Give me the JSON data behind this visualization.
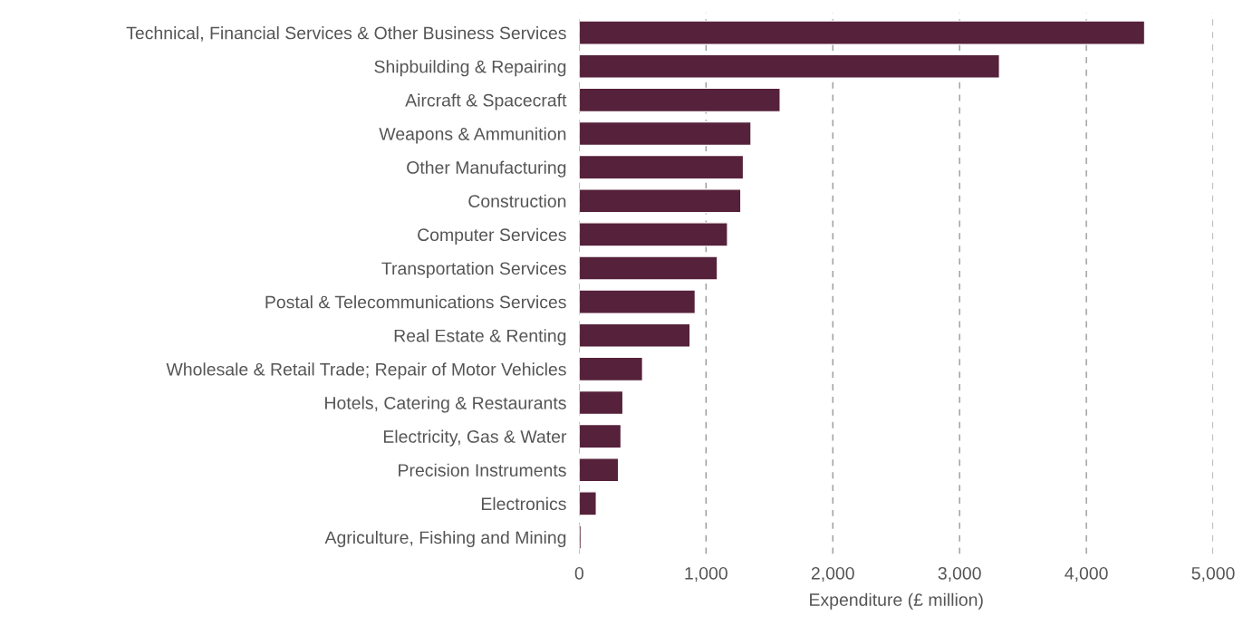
{
  "chart_data": {
    "type": "bar",
    "orientation": "horizontal",
    "categories": [
      "Technical, Financial Services & Other Business Services",
      "Shipbuilding & Repairing",
      "Aircraft & Spacecraft",
      "Weapons & Ammunition",
      "Other Manufacturing",
      "Construction",
      "Computer Services",
      "Transportation Services",
      "Postal & Telecommunications Services",
      "Real Estate & Renting",
      "Wholesale & Retail Trade; Repair of Motor Vehicles",
      "Hotels, Catering & Restaurants",
      "Electricity, Gas & Water",
      "Precision Instruments",
      "Electronics",
      "Agriculture, Fishing and Mining"
    ],
    "values": [
      4460,
      3315,
      1585,
      1355,
      1295,
      1275,
      1170,
      1090,
      915,
      875,
      500,
      345,
      330,
      310,
      135,
      15
    ],
    "color": "#56213a",
    "xlabel": "Expenditure (£ million)",
    "xlim": [
      0,
      5000
    ],
    "xticks": [
      {
        "value": 0,
        "label": "0"
      },
      {
        "value": 1000,
        "label": "1,000"
      },
      {
        "value": 2000,
        "label": "2,000"
      },
      {
        "value": 3000,
        "label": "3,000"
      },
      {
        "value": 4000,
        "label": "4,000"
      },
      {
        "value": 5000,
        "label": "5,000"
      }
    ],
    "grid": "x"
  }
}
